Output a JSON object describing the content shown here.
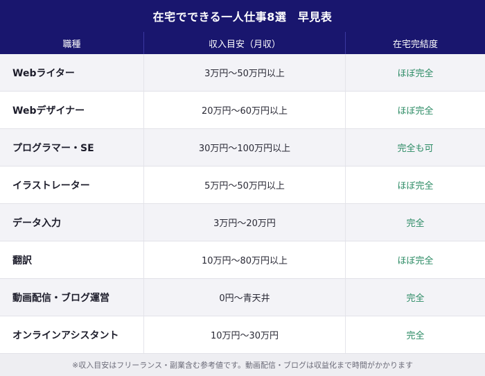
{
  "title": "在宅でできる一人仕事8選　早見表",
  "headers": [
    "職種",
    "収入目安（月収）",
    "在宅完結度"
  ],
  "rows": [
    {
      "job": "Webライター",
      "income": "3万円〜50万円以上",
      "remote": "ほぼ完全"
    },
    {
      "job": "Webデザイナー",
      "income": "20万円〜60万円以上",
      "remote": "ほぼ完全"
    },
    {
      "job": "プログラマー・SE",
      "income": "30万円〜100万円以上",
      "remote": "完全も可"
    },
    {
      "job": "イラストレーター",
      "income": "5万円〜50万円以上",
      "remote": "ほぼ完全"
    },
    {
      "job": "データ入力",
      "income": "3万円〜20万円",
      "remote": "完全"
    },
    {
      "job": "翻訳",
      "income": "10万円〜80万円以上",
      "remote": "ほぼ完全"
    },
    {
      "job": "動画配信・ブログ運営",
      "income": "0円〜青天井",
      "remote": "完全"
    },
    {
      "job": "オンラインアシスタント",
      "income": "10万円〜30万円",
      "remote": "完全"
    }
  ],
  "note": "※収入目安はフリーランス・副業含む参考値です。動画配信・ブログは収益化まで時間がかかります",
  "colors": {
    "header_bg": "#19166e",
    "accent_text": "#2a8a63"
  }
}
